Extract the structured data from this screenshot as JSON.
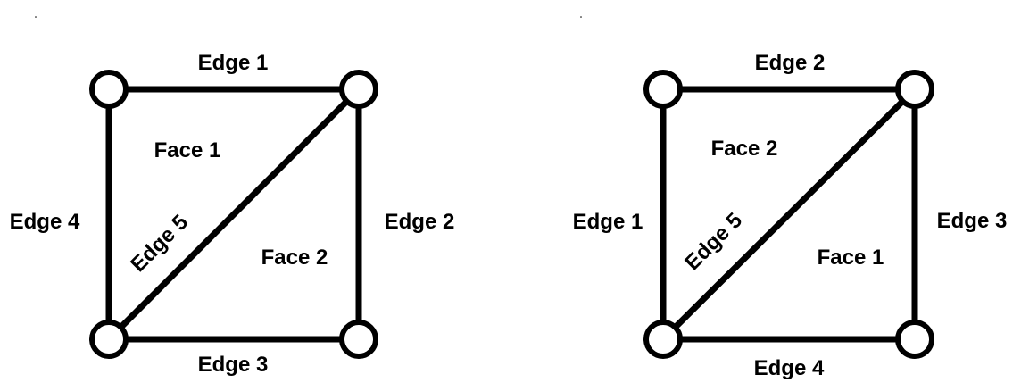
{
  "colors": {
    "stroke": "#000000",
    "vertex_fill": "#ffffff",
    "background": "#ffffff"
  },
  "diagrams": [
    {
      "name": "left",
      "edges": {
        "top": "Edge 1",
        "right": "Edge 2",
        "bottom": "Edge 3",
        "left": "Edge 4",
        "diagonal": "Edge 5"
      },
      "faces": {
        "upper_left": "Face 1",
        "lower_right": "Face 2"
      }
    },
    {
      "name": "right",
      "edges": {
        "top": "Edge 2",
        "right": "Edge 3",
        "bottom": "Edge 4",
        "left": "Edge 1",
        "diagonal": "Edge 5"
      },
      "faces": {
        "upper_left": "Face 2",
        "lower_right": "Face 1"
      }
    }
  ]
}
